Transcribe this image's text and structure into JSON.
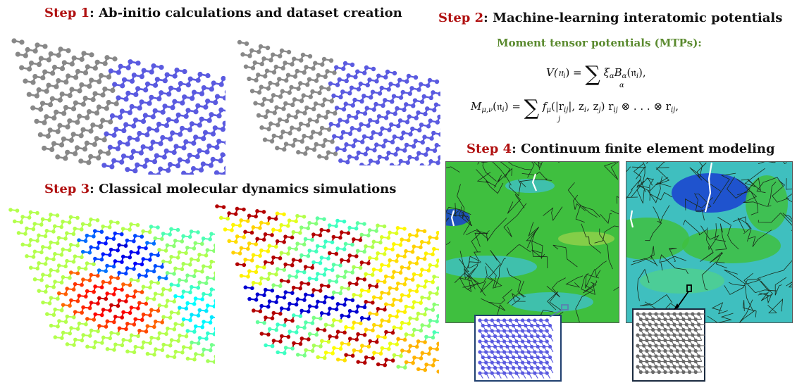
{
  "step1": {
    "num": "Step 1",
    "rest": ": Ab-initio calculations and dataset creation"
  },
  "step2": {
    "num": "Step 2",
    "rest": ": Machine-learning interatomic potentials"
  },
  "step3": {
    "num": "Step 3",
    "rest": ": Classical molecular dynamics simulations"
  },
  "step4": {
    "num": "Step 4",
    "rest": ": Continuum finite element modeling"
  },
  "mtp_title": "Moment tensor potentials (MTPs):",
  "eq1": {
    "lhs": "V(𝔫",
    "lhs_sub": "i",
    "lhs_end": ") = ",
    "sum_idx": "α",
    "rhs": "ξ",
    "rhs_sub": "α",
    "rhs2": "B",
    "rhs2_sub": "α",
    "rhs_end": "(𝔫",
    "rhs_end_sub": "i",
    "tail": "),"
  },
  "eq2": {
    "lhs": "M",
    "lhs_sub": "μ,ν",
    "lhs_mid": "(𝔫",
    "lhs_mid_sub": "i",
    "lhs_end": ") = ",
    "sum_idx": "j",
    "rhs": "f",
    "rhs_sub": "μ",
    "rhs_mid": "(|r",
    "rhs_mid_sub": "ij",
    "rhs_mid2": "|, z",
    "z_sub1": "i",
    "comma": ", z",
    "z_sub2": "j",
    "close": ") r",
    "r_sub": "ij",
    "otimes": " ⊗ . . . ⊗ r",
    "r_sub2": "ij",
    "tail": ","
  },
  "colors": {
    "step_red": "#b01010",
    "mtp_green": "#5a8a2e",
    "gray_atom": "#888888",
    "blue_atom": "#5a5ae0",
    "fe_green": "#3fbf3f",
    "fe_cyan": "#3fbfbf",
    "fe_blue": "#1a3fd0"
  }
}
